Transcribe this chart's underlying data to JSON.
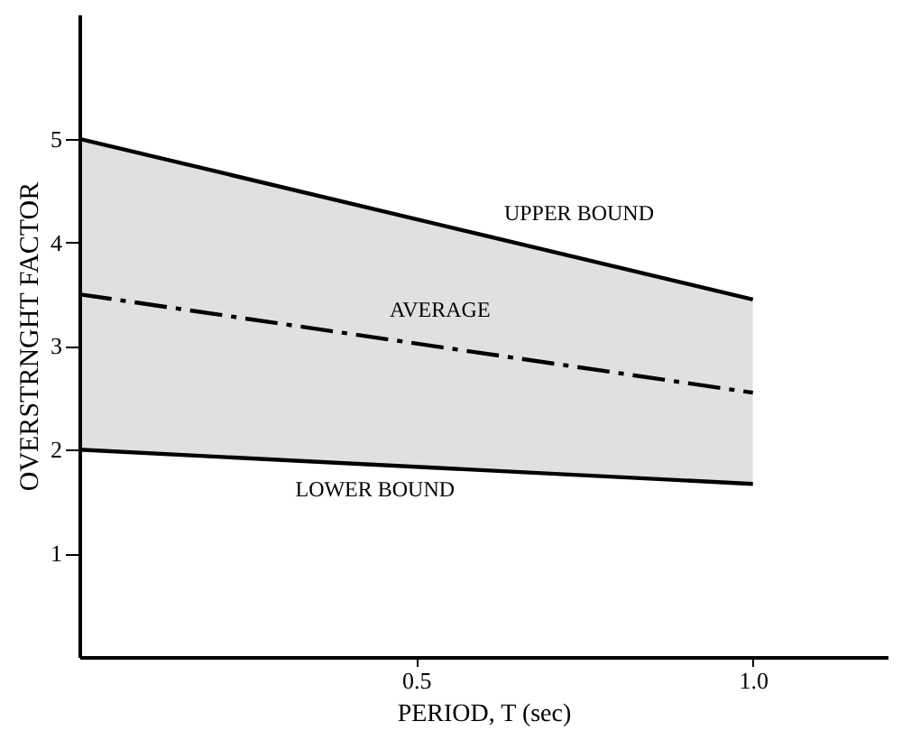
{
  "chart_data": {
    "type": "line",
    "xlabel": "PERIOD, T (sec)",
    "ylabel": "OVERSTRNGHT FACTOR",
    "x": [
      0,
      1.0
    ],
    "series": [
      {
        "color": "#000000",
        "values": [
          5.0,
          3.45
        ],
        "line_style": "solid"
      },
      {
        "color": "#000000",
        "values": [
          3.5,
          2.55
        ],
        "line_style": "dashed",
        "lower": [
          2.0,
          1.67
        ],
        "upper": [
          5.0,
          3.45
        ]
      },
      {
        "color": "#000000",
        "values": [
          2.0,
          1.67
        ],
        "line_style": "solid"
      }
    ],
    "xlim": [
      0,
      1.2
    ],
    "ylim": [
      0,
      6.2
    ],
    "xticks": [
      0.5,
      {
        "value": 1.0,
        "label": "1.0"
      }
    ],
    "yticks": [
      1,
      2,
      3,
      4,
      5
    ],
    "grid": false,
    "marker": "none",
    "annotations": [
      {
        "text": "UPPER BOUND",
        "x": 0.62,
        "y": 4.04
      },
      {
        "text": "AVERAGE",
        "x": 0.45,
        "y": 3.07
      },
      {
        "text": "LOWER BOUND",
        "x": 0.31,
        "y": 1.9
      }
    ]
  }
}
